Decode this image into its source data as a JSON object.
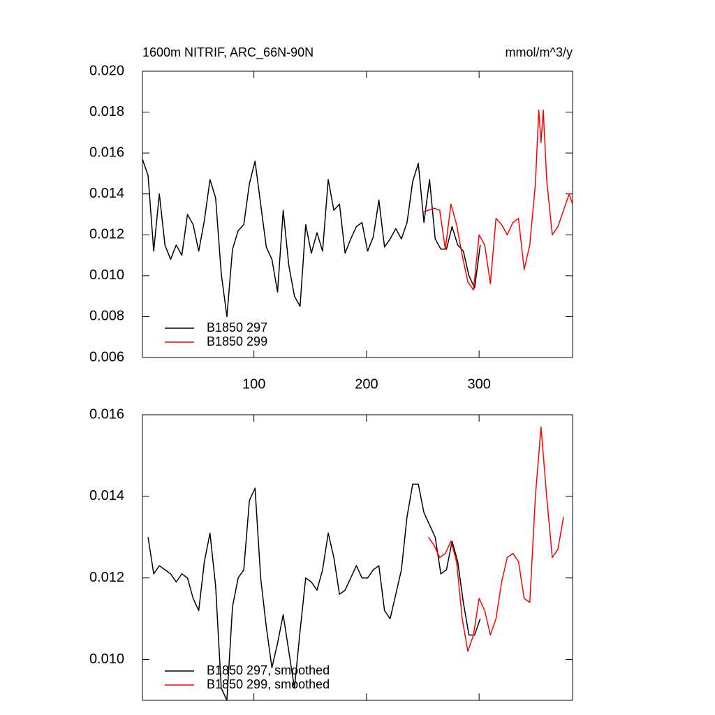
{
  "chart_data": [
    {
      "type": "line",
      "title": "1600m NITRIF, ARC_66N-90N",
      "units": "mmol/m^3/y",
      "xlim": [
        1,
        383
      ],
      "xticks": [
        100,
        200,
        300
      ],
      "xtick_labels": true,
      "ylim": [
        0.006,
        0.02
      ],
      "yticks": [
        0.006,
        0.008,
        {
          "value": 0.01,
          "label": "0.010"
        },
        0.012,
        0.014,
        0.016,
        0.018,
        {
          "value": 0.02,
          "label": "0.020"
        }
      ],
      "legend": "lower left",
      "series": [
        {
          "name": "B1850 297",
          "color": "#000000",
          "x": [
            1,
            6,
            11,
            16,
            21,
            26,
            31,
            36,
            41,
            46,
            51,
            56,
            61,
            66,
            71,
            76,
            81,
            86,
            91,
            96,
            101,
            106,
            111,
            116,
            121,
            126,
            131,
            136,
            141,
            146,
            151,
            156,
            161,
            166,
            171,
            176,
            181,
            186,
            191,
            196,
            201,
            206,
            211,
            216,
            221,
            226,
            231,
            236,
            241,
            246,
            251,
            256,
            261,
            266,
            271,
            276,
            281,
            286,
            291,
            296,
            301
          ],
          "values": [
            0.0157,
            0.0149,
            0.0112,
            0.014,
            0.0115,
            0.0108,
            0.0115,
            0.011,
            0.013,
            0.0125,
            0.0112,
            0.0127,
            0.0147,
            0.0138,
            0.0101,
            0.008,
            0.0113,
            0.0122,
            0.0125,
            0.0145,
            0.0156,
            0.0135,
            0.0114,
            0.0108,
            0.0092,
            0.0132,
            0.0105,
            0.009,
            0.0085,
            0.0125,
            0.0111,
            0.0121,
            0.0112,
            0.0147,
            0.0132,
            0.0135,
            0.0111,
            0.0118,
            0.0124,
            0.0126,
            0.0112,
            0.0119,
            0.0137,
            0.0114,
            0.0118,
            0.0123,
            0.0118,
            0.0126,
            0.0146,
            0.0155,
            0.0126,
            0.0147,
            0.0118,
            0.0113,
            0.0113,
            0.0124,
            0.0115,
            0.0112,
            0.01,
            0.0094,
            0.0115
          ]
        },
        {
          "name": "B1850 299",
          "color": "#ff0000",
          "x": [
            250,
            255,
            260,
            265,
            270,
            275,
            280,
            285,
            290,
            295,
            300,
            305,
            310,
            315,
            320,
            325,
            330,
            335,
            340,
            345,
            350,
            353,
            355,
            357,
            360,
            365,
            370,
            375,
            380,
            383
          ],
          "values": [
            0.0131,
            0.0132,
            0.0133,
            0.0132,
            0.0113,
            0.0135,
            0.0125,
            0.011,
            0.0097,
            0.0093,
            0.012,
            0.0115,
            0.0096,
            0.0128,
            0.0125,
            0.012,
            0.0126,
            0.0128,
            0.0103,
            0.0115,
            0.0145,
            0.0181,
            0.0165,
            0.0181,
            0.0147,
            0.012,
            0.0124,
            0.0132,
            0.014,
            0.0135
          ]
        }
      ]
    },
    {
      "type": "line",
      "xlim": [
        1,
        383
      ],
      "xticks": [
        100,
        200,
        300
      ],
      "xtick_labels": false,
      "ylim": [
        0.009,
        0.016
      ],
      "yticks": [
        {
          "value": 0.01,
          "label": "0.010"
        },
        0.012,
        0.014,
        0.016
      ],
      "legend": "lower left",
      "series": [
        {
          "name": "B1850 297, smoothed",
          "color": "#000000",
          "x": [
            6,
            11,
            16,
            21,
            26,
            31,
            36,
            41,
            46,
            51,
            56,
            61,
            66,
            71,
            76,
            81,
            86,
            91,
            96,
            101,
            106,
            111,
            116,
            121,
            126,
            131,
            136,
            141,
            146,
            151,
            156,
            161,
            166,
            171,
            176,
            181,
            186,
            191,
            196,
            201,
            206,
            211,
            216,
            221,
            226,
            231,
            236,
            241,
            246,
            251,
            256,
            261,
            266,
            271,
            276,
            281,
            286,
            291,
            296,
            301
          ],
          "values": [
            0.013,
            0.0121,
            0.0123,
            0.0122,
            0.0121,
            0.0119,
            0.0121,
            0.012,
            0.0115,
            0.0112,
            0.0124,
            0.0131,
            0.0118,
            0.0093,
            0.009,
            0.0113,
            0.012,
            0.0122,
            0.0139,
            0.0142,
            0.012,
            0.0108,
            0.0098,
            0.0104,
            0.0111,
            0.0102,
            0.0093,
            0.0107,
            0.012,
            0.0119,
            0.0117,
            0.0122,
            0.0131,
            0.0125,
            0.0116,
            0.0117,
            0.012,
            0.0123,
            0.012,
            0.012,
            0.0122,
            0.0123,
            0.0112,
            0.011,
            0.0116,
            0.0122,
            0.0135,
            0.0143,
            0.0143,
            0.0136,
            0.0133,
            0.013,
            0.0121,
            0.0122,
            0.0129,
            0.0124,
            0.0114,
            0.0106,
            0.0106,
            0.011
          ]
        },
        {
          "name": "B1850 299, smoothed",
          "color": "#ff0000",
          "x": [
            255,
            260,
            265,
            270,
            275,
            280,
            285,
            290,
            295,
            300,
            305,
            310,
            315,
            320,
            325,
            330,
            335,
            340,
            345,
            350,
            355,
            360,
            365,
            370,
            375
          ],
          "values": [
            0.013,
            0.0128,
            0.0125,
            0.0126,
            0.0129,
            0.0124,
            0.011,
            0.0102,
            0.0106,
            0.0115,
            0.0112,
            0.0106,
            0.011,
            0.0119,
            0.0125,
            0.0126,
            0.0124,
            0.0115,
            0.0114,
            0.014,
            0.0157,
            0.014,
            0.0125,
            0.0127,
            0.0135
          ]
        }
      ]
    }
  ]
}
